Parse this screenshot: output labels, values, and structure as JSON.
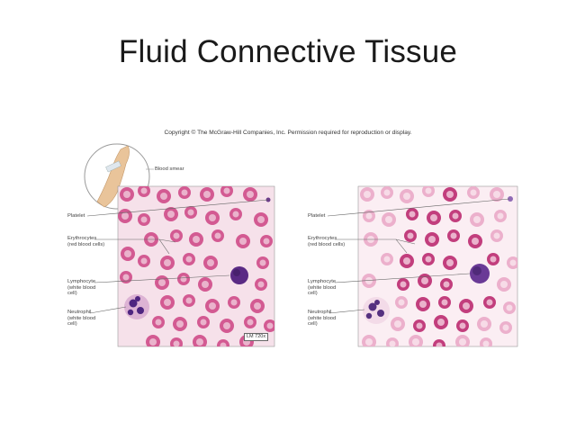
{
  "slide": {
    "title": "Fluid Connective Tissue",
    "copyright": "Copyright © The McGraw-Hill Companies, Inc. Permission required for reproduction or display."
  },
  "figure_left": {
    "blood_smear_label": "Blood smear",
    "labels": {
      "platelet": "Platelet",
      "erythrocytes_1": "Erythrocytes",
      "erythrocytes_2": "(red blood cells)",
      "lymphocyte_1": "Lymphocyte",
      "lymphocyte_2": "(white blood",
      "lymphocyte_3": "cell)",
      "neutrophil_1": "Neutrophil",
      "neutrophil_2": "(white blood",
      "neutrophil_3": "cell)"
    },
    "magnification": "LM 720x"
  },
  "figure_right": {
    "labels": {
      "platelet": "Platelet",
      "erythrocytes_1": "Erythrocytes",
      "erythrocytes_2": "(red blood cells)",
      "lymphocyte_1": "Lymphocyte",
      "lymphocyte_2": "(white blood",
      "lymphocyte_3": "cell)",
      "neutrophil_1": "Neutrophil",
      "neutrophil_2": "(white blood",
      "neutrophil_3": "cell)"
    }
  },
  "colors": {
    "rbc_left": "#d35a92",
    "rbc_right_dark": "#c23e7d",
    "rbc_right_light": "#ecb0cc",
    "wbc_nucleus": "#4b2478",
    "background_left": "#f6e1ea",
    "background_right": "#fbeef3"
  }
}
